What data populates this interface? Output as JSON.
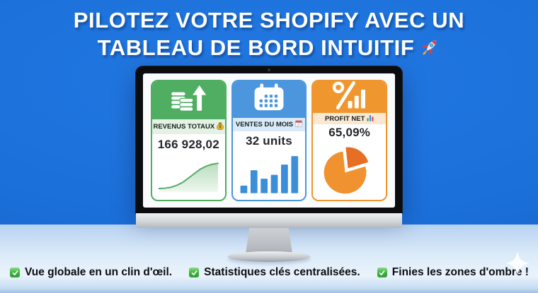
{
  "page": {
    "background_color": "#1b6fd9",
    "lower_background_color": "#dcebf9"
  },
  "title": {
    "line1": "PILOTEZ VOTRE SHOPIFY AVEC UN",
    "line2": "TABLEAU DE BORD INTUITIF",
    "trailing_icon": "rocket-icon"
  },
  "dashboard": {
    "cards": [
      {
        "label": "REVENUS TOTAUX",
        "label_icon": "money-bag-icon",
        "value": "166 928,02",
        "header_icon": "coins-growth-icon",
        "accent_color": "#4fae62",
        "label_bg_color": "#e3f2e5"
      },
      {
        "label": "VENTES DU MOIS",
        "label_icon": "calendar-page-icon",
        "value": "32 units",
        "header_icon": "calendar-icon",
        "accent_color": "#4b96dd",
        "label_bg_color": "#d9ebfa"
      },
      {
        "label": "PROFIT NET",
        "label_icon": "bar-chart-emoji-icon",
        "value": "65,09%",
        "header_icon": "percent-bars-icon",
        "accent_color": "#f0962f",
        "label_bg_color": "#fbe8d2"
      }
    ]
  },
  "chart_data": [
    {
      "type": "area",
      "title": "Revenus totaux sparkline",
      "displayed_value": "166 928,02",
      "x": [
        0,
        10,
        20,
        30,
        40,
        50,
        60,
        70,
        80,
        90,
        100
      ],
      "values": [
        10,
        11,
        14,
        20,
        29,
        43,
        57,
        71,
        80,
        86,
        89
      ],
      "line_color": "#55a868",
      "fill_top": "#b9ddbd",
      "fill_bottom": "#edf7ee",
      "axes": "none",
      "grid": false,
      "legend": "none"
    },
    {
      "type": "bar",
      "title": "Ventes du mois sparkline",
      "displayed_value": "32 units",
      "values": [
        20,
        60,
        38,
        48,
        75,
        97
      ],
      "bar_color": "#3d8ed9",
      "axes": "none",
      "grid": false,
      "legend": "none"
    },
    {
      "type": "pie",
      "title": "Profit net pie",
      "displayed_value": "65,09%",
      "start_angle": -6,
      "slices": [
        {
          "name": "part-detachee",
          "pct": 22,
          "color": "#e66f24",
          "exploded": true
        },
        {
          "name": "part-principale",
          "pct": 78,
          "color": "#f0922f",
          "exploded": false
        }
      ],
      "legend": "none"
    }
  ],
  "bullets": [
    {
      "icon": "check-icon",
      "text": "Vue globale en un clin d'œil."
    },
    {
      "icon": "check-icon",
      "text": "Statistiques clés centralisées."
    },
    {
      "icon": "check-icon",
      "text": "Finies les zones d'ombre !"
    }
  ],
  "decor": {
    "sparkle_icon": "sparkle-icon"
  }
}
